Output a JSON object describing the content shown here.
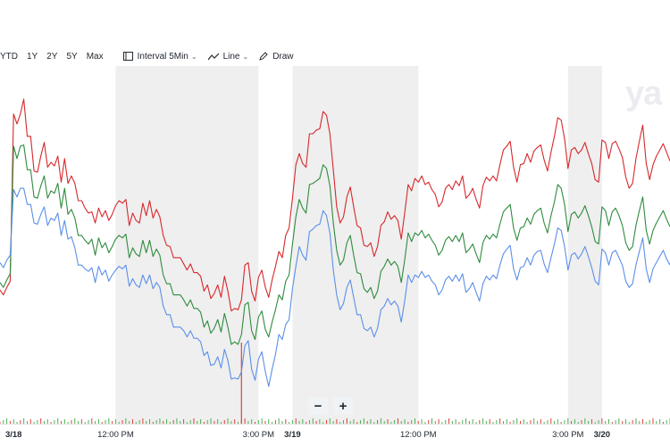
{
  "toolbar": {
    "ranges": [
      "YTD",
      "1Y",
      "2Y",
      "5Y",
      "Max"
    ],
    "interval_label": "Interval",
    "interval_value": "5Min",
    "chart_type_label": "Line",
    "draw_label": "Draw"
  },
  "watermark": "ya",
  "zoom": {
    "out": "−",
    "in": "+"
  },
  "colors": {
    "red": "#d6282b",
    "green": "#2e8b3e",
    "blue": "#5b8fe8",
    "shade": "#efefef",
    "volume_up": "#4caf50",
    "volume_down": "#e0403a"
  },
  "chart_data": {
    "type": "line",
    "x_tick_labels": [
      "3/18",
      "12:00 PM",
      "3:00 PM",
      "3/19",
      "12:00 PM",
      "3:00 PM",
      "3/20"
    ],
    "x_tick_bold": [
      true,
      false,
      false,
      true,
      false,
      false,
      true
    ],
    "x_tick_index": [
      4,
      34,
      76,
      86,
      123,
      167,
      177
    ],
    "shaded_ranges": [
      [
        34,
        76
      ],
      [
        86,
        123
      ],
      [
        167,
        177
      ]
    ],
    "series": [
      {
        "color": "#d6282b",
        "values": [
          108,
          104,
          110,
          115,
          250,
          242,
          250,
          262,
          232,
          232,
          204,
          203,
          216,
          227,
          207,
          211,
          208,
          216,
          195,
          214,
          194,
          200,
          194,
          180,
          180,
          174,
          170,
          171,
          162,
          174,
          167,
          172,
          164,
          169,
          176,
          180,
          178,
          181,
          160,
          170,
          164,
          162,
          178,
          168,
          180,
          166,
          173,
          167,
          152,
          144,
          143,
          134,
          134,
          134,
          129,
          124,
          129,
          122,
          122,
          119,
          107,
          112,
          101,
          105,
          112,
          102,
          119,
          107,
          91,
          93,
          92,
          100,
          128,
          130,
          107,
          99,
          118,
          124,
          110,
          102,
          116,
          127,
          139,
          134,
          152,
          158,
          182,
          209,
          218,
          210,
          207,
          234,
          234,
          237,
          238,
          252,
          249,
          234,
          205,
          175,
          162,
          167,
          183,
          191,
          175,
          160,
          158,
          144,
          143,
          146,
          135,
          143,
          160,
          163,
          171,
          165,
          168,
          164,
          149,
          170,
          193,
          188,
          198,
          195,
          200,
          193,
          195,
          189,
          185,
          175,
          179,
          190,
          193,
          189,
          196,
          192,
          200,
          182,
          185,
          190,
          181,
          174,
          192,
          199,
          196,
          200,
          196,
          209,
          221,
          224,
          228,
          207,
          195,
          209,
          210,
          218,
          211,
          220,
          223,
          225,
          213,
          204,
          219,
          232,
          247,
          245,
          230,
          206,
          221,
          223,
          218,
          221,
          227,
          218,
          210,
          197,
          195,
          229,
          227,
          214,
          226,
          228,
          222,
          215,
          199,
          190,
          194,
          214,
          228,
          241,
          210,
          197,
          209,
          216,
          221,
          226,
          219,
          212
        ]
      },
      {
        "color": "#2e8b3e",
        "values": [
          114,
          110,
          116,
          121,
          224,
          214,
          224,
          225,
          205,
          205,
          183,
          182,
          192,
          200,
          182,
          188,
          186,
          194,
          174,
          190,
          169,
          173,
          166,
          152,
          152,
          148,
          145,
          149,
          136,
          150,
          142,
          146,
          138,
          143,
          149,
          152,
          150,
          153,
          134,
          142,
          137,
          135,
          148,
          138,
          148,
          135,
          141,
          136,
          120,
          113,
          113,
          104,
          104,
          104,
          100,
          95,
          100,
          93,
          93,
          90,
          78,
          83,
          73,
          77,
          84,
          74,
          89,
          78,
          64,
          66,
          64,
          72,
          96,
          98,
          75,
          68,
          86,
          91,
          76,
          70,
          82,
          92,
          104,
          100,
          115,
          120,
          145,
          167,
          181,
          174,
          170,
          193,
          194,
          196,
          198,
          209,
          206,
          192,
          162,
          140,
          128,
          132,
          146,
          152,
          136,
          122,
          121,
          109,
          106,
          110,
          101,
          107,
          123,
          127,
          133,
          128,
          131,
          127,
          114,
          132,
          154,
          147,
          154,
          152,
          156,
          150,
          153,
          148,
          144,
          136,
          140,
          148,
          151,
          147,
          152,
          147,
          154,
          138,
          141,
          145,
          137,
          130,
          146,
          152,
          149,
          153,
          150,
          161,
          171,
          174,
          177,
          158,
          148,
          158,
          159,
          166,
          161,
          169,
          172,
          174,
          162,
          154,
          168,
          179,
          193,
          190,
          177,
          155,
          169,
          171,
          166,
          170,
          176,
          168,
          159,
          147,
          145,
          175,
          172,
          160,
          171,
          174,
          168,
          160,
          146,
          140,
          143,
          160,
          172,
          183,
          156,
          145,
          156,
          162,
          167,
          172,
          165,
          159
        ]
      },
      {
        "color": "#5b8fe8",
        "values": [
          130,
          126,
          132,
          136,
          189,
          183,
          190,
          190,
          177,
          177,
          162,
          161,
          169,
          175,
          160,
          166,
          164,
          170,
          152,
          164,
          149,
          151,
          142,
          128,
          128,
          125,
          123,
          126,
          114,
          127,
          120,
          124,
          115,
          120,
          124,
          127,
          125,
          128,
          111,
          117,
          112,
          110,
          120,
          113,
          120,
          109,
          114,
          110,
          95,
          88,
          88,
          78,
          78,
          78,
          75,
          70,
          75,
          69,
          69,
          66,
          55,
          58,
          47,
          48,
          54,
          45,
          60,
          51,
          36,
          37,
          36,
          42,
          63,
          67,
          44,
          35,
          52,
          58,
          42,
          30,
          44,
          56,
          72,
          68,
          80,
          84,
          109,
          127,
          143,
          136,
          132,
          155,
          157,
          160,
          161,
          172,
          168,
          154,
          124,
          104,
          92,
          97,
          110,
          116,
          102,
          88,
          88,
          77,
          75,
          78,
          70,
          77,
          92,
          95,
          101,
          96,
          99,
          95,
          82,
          99,
          120,
          114,
          120,
          118,
          123,
          118,
          120,
          115,
          112,
          104,
          108,
          116,
          119,
          115,
          120,
          115,
          121,
          106,
          109,
          114,
          106,
          99,
          113,
          119,
          116,
          120,
          117,
          128,
          137,
          141,
          144,
          125,
          116,
          126,
          127,
          134,
          128,
          136,
          139,
          140,
          129,
          122,
          134,
          145,
          158,
          156,
          143,
          124,
          136,
          138,
          133,
          137,
          143,
          135,
          126,
          115,
          112,
          141,
          138,
          128,
          138,
          140,
          134,
          128,
          115,
          110,
          113,
          128,
          139,
          150,
          125,
          114,
          125,
          130,
          135,
          140,
          133,
          128
        ]
      }
    ],
    "y_range": [
      0,
      270
    ],
    "grid": false,
    "volume_spike_index": 71
  }
}
